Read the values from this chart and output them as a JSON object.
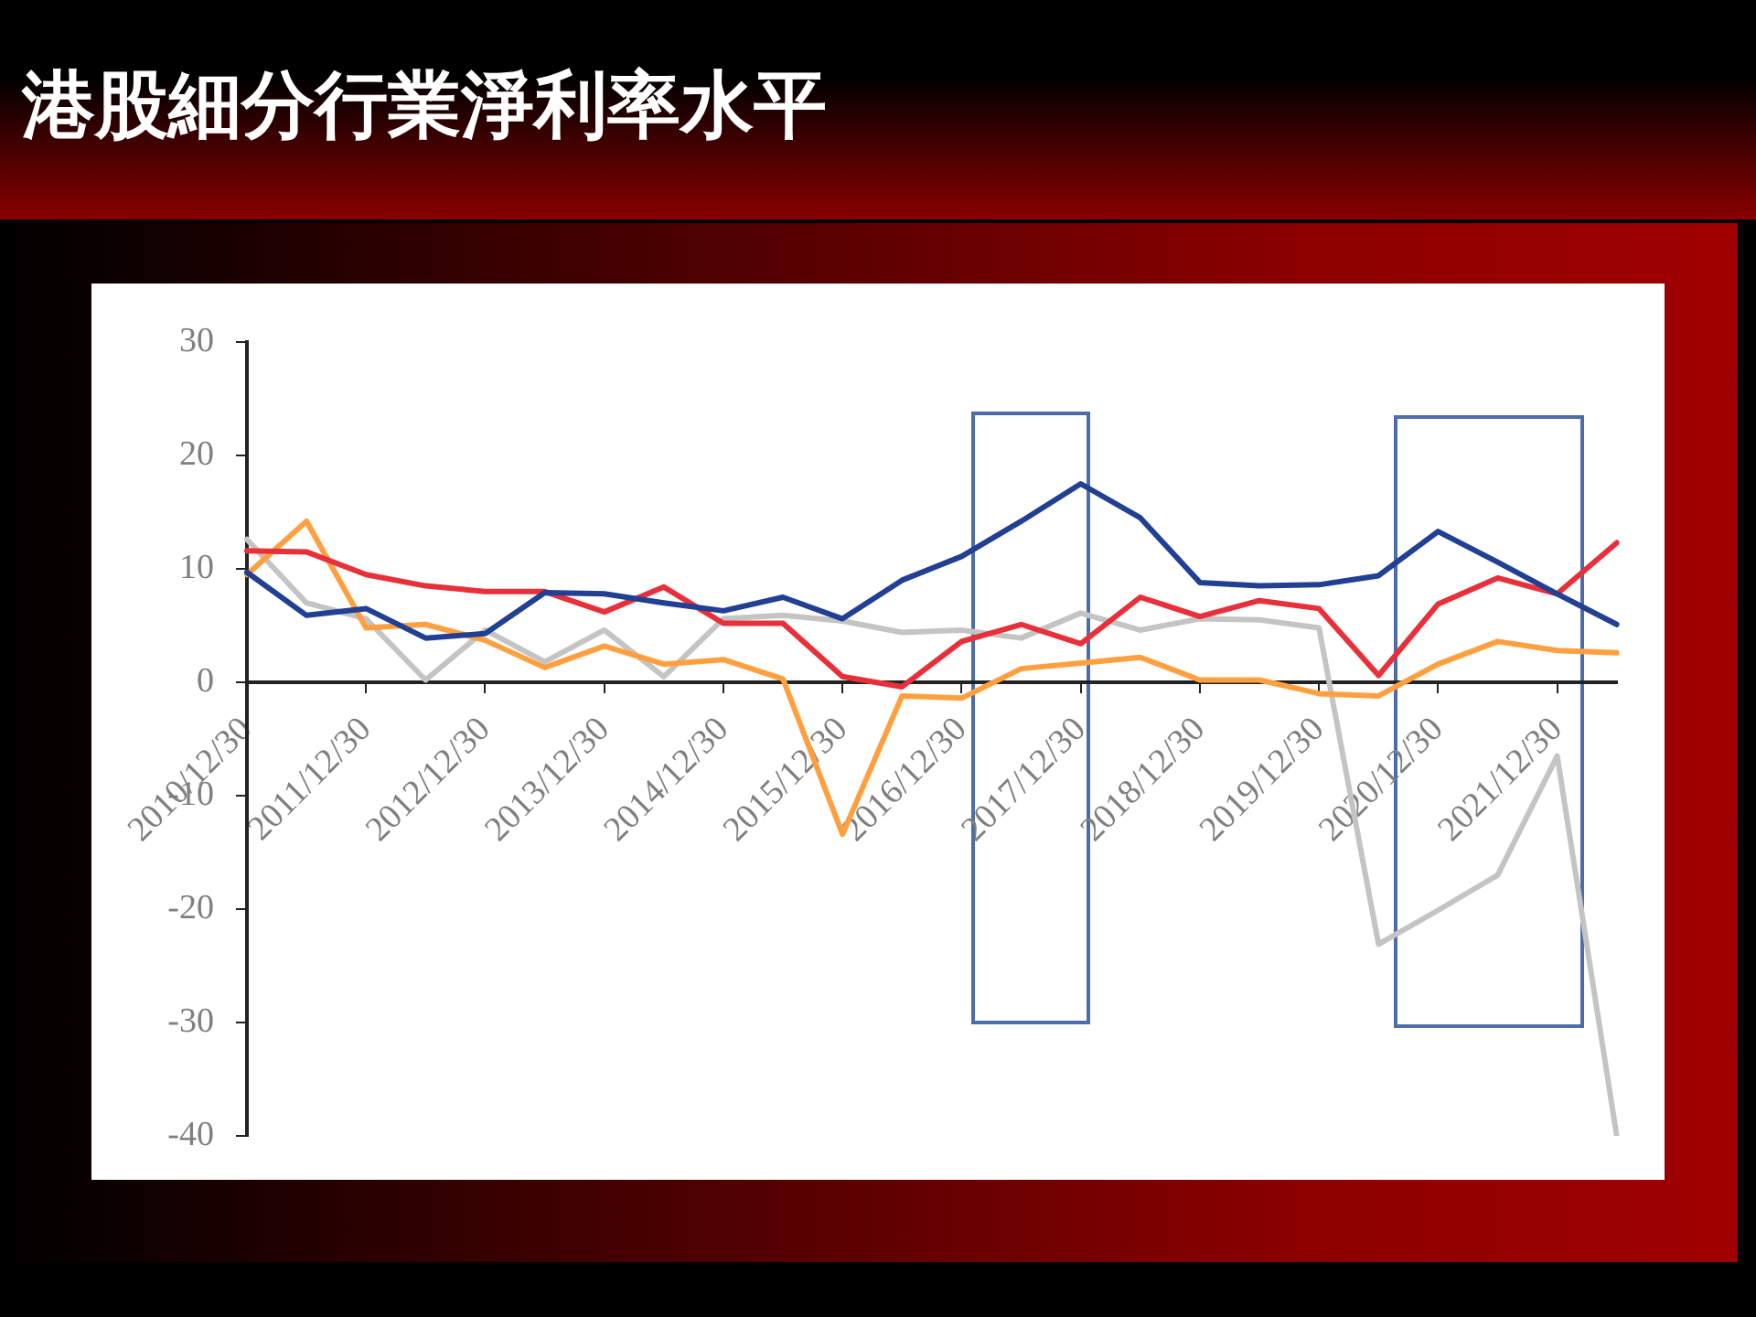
{
  "chart_data": {
    "type": "line",
    "title": "港股細分行業淨利率水平",
    "categories": [
      "2010/12/30",
      null,
      "2011/12/30",
      null,
      "2012/12/30",
      null,
      "2013/12/30",
      null,
      "2014/12/30",
      null,
      "2015/12/30",
      null,
      "2016/12/30",
      null,
      "2017/12/30",
      null,
      "2018/12/30",
      null,
      "2019/12/30",
      null,
      "2020/12/30",
      null,
      "2021/12/30",
      null
    ],
    "series": [
      {
        "color": "#213f93",
        "values": [
          9.7,
          5.9,
          6.5,
          3.9,
          4.3,
          7.9,
          7.8,
          7.0,
          6.3,
          7.5,
          5.6,
          9.0,
          11.1,
          14.2,
          17.5,
          14.5,
          8.8,
          8.5,
          8.6,
          9.4,
          13.3,
          10.6,
          7.8,
          5.1
        ]
      },
      {
        "color": "#e8303a",
        "values": [
          11.6,
          11.5,
          9.5,
          8.5,
          8.0,
          8.0,
          6.2,
          8.4,
          5.2,
          5.2,
          0.5,
          -0.4,
          3.6,
          5.1,
          3.4,
          7.5,
          5.8,
          7.2,
          6.5,
          0.6,
          6.9,
          9.2,
          7.8,
          12.3
        ]
      },
      {
        "color": "#ffa040",
        "values": [
          9.5,
          14.2,
          4.8,
          5.1,
          3.7,
          1.3,
          3.2,
          1.6,
          2.0,
          0.3,
          -13.4,
          -1.2,
          -1.4,
          1.2,
          1.7,
          2.2,
          0.2,
          0.2,
          -1.0,
          -1.2,
          1.6,
          3.6,
          2.8,
          2.6
        ]
      },
      {
        "color": "#c4c4c4",
        "values": [
          12.6,
          7.0,
          5.6,
          0.2,
          4.6,
          1.8,
          4.6,
          0.5,
          5.6,
          5.9,
          5.4,
          4.4,
          4.6,
          3.9,
          6.1,
          4.6,
          5.6,
          5.5,
          4.8,
          -23.1,
          -20.1,
          -17.0,
          -6.5,
          -40.0
        ]
      }
    ],
    "ylim": [
      -40,
      30
    ],
    "yticks": [
      -40,
      -30,
      -20,
      -10,
      0,
      10,
      20,
      30
    ],
    "grid": false,
    "legend": false,
    "marker": "none",
    "line_style": "solid"
  }
}
